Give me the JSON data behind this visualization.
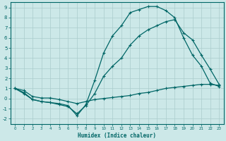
{
  "xlabel": "Humidex (Indice chaleur)",
  "bg_color": "#cce8e8",
  "grid_color": "#aacccc",
  "line_color": "#006666",
  "xlim": [
    -0.5,
    23.5
  ],
  "ylim": [
    -2.5,
    9.5
  ],
  "xticks": [
    0,
    1,
    2,
    3,
    4,
    5,
    6,
    7,
    8,
    9,
    10,
    11,
    12,
    13,
    14,
    15,
    16,
    17,
    18,
    19,
    20,
    21,
    22,
    23
  ],
  "yticks": [
    -2,
    -1,
    0,
    1,
    2,
    3,
    4,
    5,
    6,
    7,
    8,
    9
  ],
  "series1_x": [
    0,
    1,
    2,
    3,
    4,
    5,
    6,
    7,
    8,
    9,
    10,
    11,
    12,
    13,
    14,
    15,
    16,
    17,
    18,
    19,
    20,
    21,
    22,
    23
  ],
  "series1_y": [
    1.0,
    0.6,
    -0.1,
    -0.3,
    -0.4,
    -0.5,
    -0.7,
    -1.7,
    -0.6,
    1.8,
    4.5,
    6.2,
    7.2,
    8.5,
    8.8,
    9.1,
    9.1,
    8.7,
    8.0,
    6.0,
    4.3,
    3.2,
    1.5,
    1.2
  ],
  "series2_x": [
    0,
    1,
    2,
    3,
    4,
    5,
    6,
    7,
    8,
    9,
    10,
    11,
    12,
    13,
    14,
    15,
    16,
    17,
    18,
    19,
    20,
    21,
    22,
    23
  ],
  "series2_y": [
    1.0,
    0.5,
    -0.1,
    -0.3,
    -0.4,
    -0.6,
    -0.8,
    -1.5,
    -0.7,
    0.5,
    2.2,
    3.2,
    4.0,
    5.3,
    6.2,
    6.8,
    7.2,
    7.6,
    7.8,
    6.5,
    5.8,
    4.3,
    2.9,
    1.4
  ],
  "series3_x": [
    0,
    1,
    2,
    3,
    4,
    5,
    6,
    7,
    8,
    9,
    10,
    11,
    12,
    13,
    14,
    15,
    16,
    17,
    18,
    19,
    20,
    21,
    22,
    23
  ],
  "series3_y": [
    1.0,
    0.8,
    0.2,
    0.05,
    0.05,
    -0.1,
    -0.3,
    -0.5,
    -0.3,
    -0.1,
    0.0,
    0.1,
    0.2,
    0.3,
    0.5,
    0.6,
    0.8,
    1.0,
    1.1,
    1.2,
    1.3,
    1.4,
    1.4,
    1.3
  ]
}
